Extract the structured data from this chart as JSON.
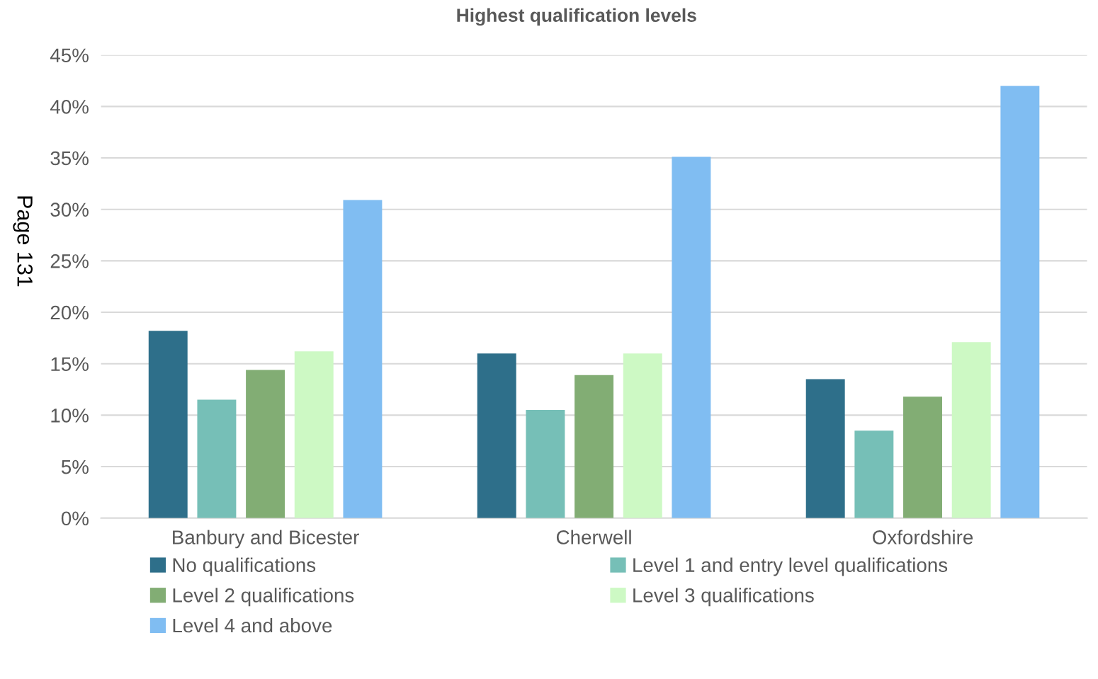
{
  "chart_data": {
    "type": "bar",
    "title": "Highest qualification levels",
    "categories": [
      "Banbury and Bicester",
      "Cherwell",
      "Oxfordshire"
    ],
    "series": [
      {
        "name": "No qualifications",
        "color": "#2e6f8a",
        "values": [
          18.2,
          16.0,
          13.5
        ]
      },
      {
        "name": "Level 1 and entry level qualifications",
        "color": "#76bfb7",
        "values": [
          11.5,
          10.5,
          8.5
        ]
      },
      {
        "name": "Level 2 qualifications",
        "color": "#82ad74",
        "values": [
          14.4,
          13.9,
          11.8
        ]
      },
      {
        "name": "Level 3 qualifications",
        "color": "#cdf9c4",
        "values": [
          16.2,
          16.0,
          17.1
        ]
      },
      {
        "name": "Level 4 and above",
        "color": "#80bdf2",
        "values": [
          30.9,
          35.1,
          42.0
        ]
      }
    ],
    "ylim": [
      0,
      45
    ],
    "yticks": [
      {
        "value": 0,
        "label": "0%"
      },
      {
        "value": 5,
        "label": "5%"
      },
      {
        "value": 10,
        "label": "10%"
      },
      {
        "value": 15,
        "label": "15%"
      },
      {
        "value": 20,
        "label": "20%"
      },
      {
        "value": 25,
        "label": "25%"
      },
      {
        "value": 30,
        "label": "30%"
      },
      {
        "value": 35,
        "label": "35%"
      },
      {
        "value": 40,
        "label": "40%"
      },
      {
        "value": 45,
        "label": "45%"
      }
    ],
    "grid": "y",
    "legend": "bottom",
    "annotations": [
      "Page 131"
    ]
  }
}
